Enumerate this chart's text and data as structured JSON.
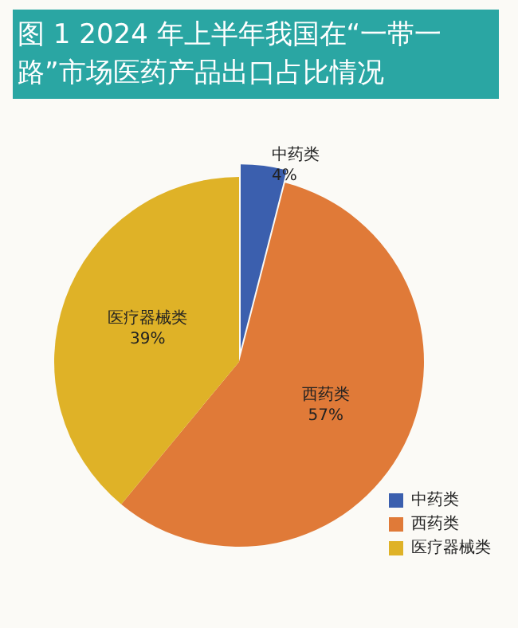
{
  "chart_data": {
    "type": "pie",
    "title": "图 1 2024 年上半年我国在“一带一路”市场医药产品出口占比情况",
    "categories": [
      "中药类",
      "西药类",
      "医疗器械类"
    ],
    "values": [
      4,
      57,
      39
    ],
    "colors": [
      "#3b5fae",
      "#e07a38",
      "#dfb227"
    ],
    "value_labels": [
      "4%",
      "57%",
      "39%"
    ],
    "legend": "bottom right"
  }
}
